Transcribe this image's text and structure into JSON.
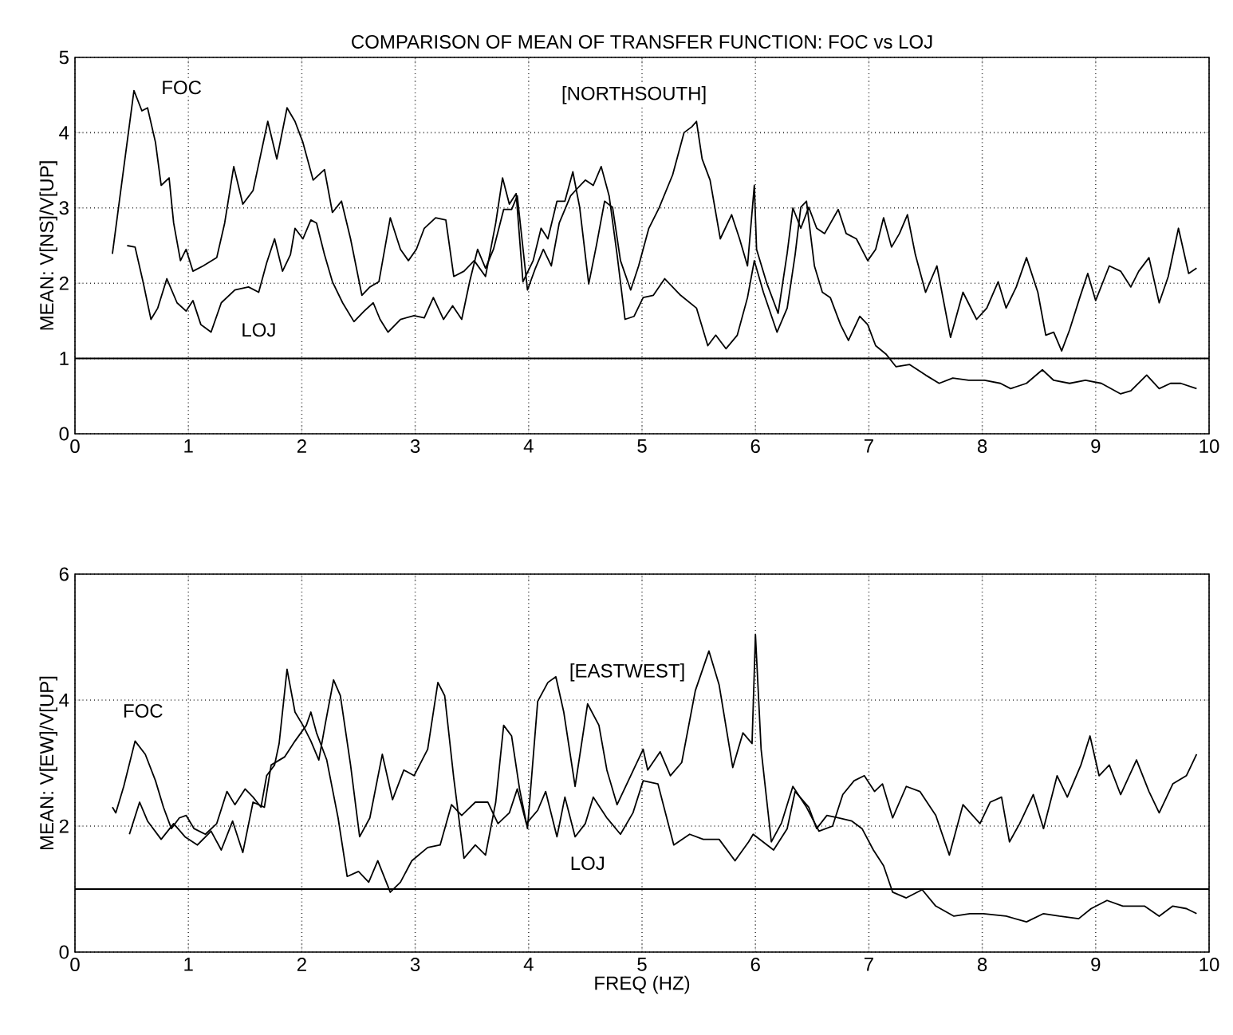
{
  "chart_data": [
    {
      "type": "line",
      "title": "COMPARISON OF MEAN OF TRANSFER FUNCTION: FOC vs LOJ",
      "ylabel": "MEAN: V[NS]/V[UP]",
      "xlim": [
        0,
        10
      ],
      "xticks": [
        0,
        1,
        2,
        3,
        4,
        5,
        6,
        7,
        8,
        9,
        10
      ],
      "ylim": [
        0,
        5
      ],
      "yticks": [
        0,
        1,
        2,
        3,
        4,
        5
      ],
      "grid": true,
      "annotations": [
        "[NORTHSOUTH]"
      ],
      "ref_lines": [
        {
          "axis": "y",
          "value": 1,
          "color": "#000000"
        }
      ],
      "series": [
        {
          "name": "FOC",
          "color": "#000000",
          "x": [
            0.33,
            0.52,
            0.59,
            0.64,
            0.71,
            0.76,
            0.83,
            0.87,
            0.93,
            0.98,
            1.04,
            1.13,
            1.25,
            1.32,
            1.4,
            1.48,
            1.57,
            1.7,
            1.78,
            1.87,
            1.94,
            2.01,
            2.1,
            2.2,
            2.27,
            2.35,
            2.43,
            2.53,
            2.6,
            2.68,
            2.78,
            2.87,
            2.94,
            3.01,
            3.08,
            3.18,
            3.27,
            3.34,
            3.43,
            3.52,
            3.62,
            3.71,
            3.77,
            3.83,
            3.89,
            3.95,
            4.04,
            4.11,
            4.17,
            4.25,
            4.32,
            4.39,
            4.45,
            4.53,
            4.6,
            4.67,
            4.74,
            4.81,
            4.9,
            4.97,
            5.06,
            5.15,
            5.27,
            5.37,
            5.44,
            5.48,
            5.53,
            5.6,
            5.69,
            5.79,
            5.86,
            5.93,
            5.99,
            6.01,
            6.1,
            6.2,
            6.28,
            6.33,
            6.4,
            6.47,
            6.54,
            6.61,
            6.73,
            6.8,
            6.89,
            6.99,
            7.06,
            7.13,
            7.2,
            7.27,
            7.34,
            7.41,
            7.5,
            7.6,
            7.72,
            7.83,
            7.95,
            8.04,
            8.14,
            8.21,
            8.3,
            8.39,
            8.49,
            8.56,
            8.63,
            8.7,
            8.77,
            8.86,
            8.93,
            9.0,
            9.12,
            9.22,
            9.31,
            9.38,
            9.47,
            9.56,
            9.64,
            9.73,
            9.82,
            9.89
          ],
          "values": [
            2.39,
            4.56,
            4.29,
            4.33,
            3.87,
            3.3,
            3.4,
            2.8,
            2.3,
            2.45,
            2.16,
            2.23,
            2.34,
            2.8,
            3.55,
            3.05,
            3.23,
            4.15,
            3.65,
            4.33,
            4.15,
            3.87,
            3.37,
            3.51,
            2.94,
            3.09,
            2.59,
            1.84,
            1.95,
            2.02,
            2.87,
            2.45,
            2.3,
            2.45,
            2.73,
            2.87,
            2.84,
            2.09,
            2.16,
            2.3,
            2.09,
            2.8,
            3.4,
            3.05,
            3.19,
            2.02,
            2.3,
            2.73,
            2.59,
            3.09,
            3.09,
            3.48,
            3.01,
            1.99,
            2.52,
            3.09,
            3.01,
            2.3,
            1.91,
            2.23,
            2.73,
            3.0,
            3.44,
            4.0,
            4.08,
            4.15,
            3.65,
            3.37,
            2.59,
            2.91,
            2.59,
            2.23,
            3.3,
            2.45,
            2.0,
            1.6,
            2.4,
            3.0,
            2.73,
            3.01,
            2.73,
            2.66,
            2.98,
            2.66,
            2.59,
            2.3,
            2.45,
            2.87,
            2.48,
            2.66,
            2.91,
            2.38,
            1.88,
            2.23,
            1.28,
            1.88,
            1.52,
            1.67,
            2.02,
            1.67,
            1.95,
            2.34,
            1.88,
            1.31,
            1.35,
            1.1,
            1.38,
            1.81,
            2.13,
            1.77,
            2.23,
            2.16,
            1.95,
            2.16,
            2.34,
            1.74,
            2.09,
            2.73,
            2.13,
            2.2
          ]
        },
        {
          "name": "LOJ",
          "color": "#000000",
          "x": [
            0.46,
            0.53,
            0.6,
            0.67,
            0.73,
            0.81,
            0.9,
            0.98,
            1.04,
            1.11,
            1.2,
            1.29,
            1.41,
            1.53,
            1.62,
            1.69,
            1.76,
            1.83,
            1.9,
            1.94,
            2.01,
            2.08,
            2.13,
            2.2,
            2.27,
            2.36,
            2.46,
            2.55,
            2.63,
            2.69,
            2.76,
            2.87,
            2.99,
            3.08,
            3.16,
            3.25,
            3.33,
            3.41,
            3.48,
            3.55,
            3.62,
            3.69,
            3.78,
            3.85,
            3.9,
            3.99,
            4.06,
            4.13,
            4.2,
            4.27,
            4.37,
            4.43,
            4.5,
            4.57,
            4.64,
            4.71,
            4.78,
            4.85,
            4.93,
            5.01,
            5.1,
            5.2,
            5.34,
            5.48,
            5.58,
            5.65,
            5.74,
            5.84,
            5.93,
            5.99,
            6.07,
            6.19,
            6.28,
            6.35,
            6.4,
            6.45,
            6.52,
            6.59,
            6.66,
            6.75,
            6.82,
            6.92,
            6.99,
            7.06,
            7.15,
            7.24,
            7.36,
            7.5,
            7.62,
            7.74,
            7.88,
            8.02,
            8.16,
            8.25,
            8.39,
            8.53,
            8.63,
            8.77,
            8.91,
            9.05,
            9.22,
            9.31,
            9.45,
            9.56,
            9.66,
            9.75,
            9.89
          ],
          "values": [
            2.5,
            2.48,
            2.02,
            1.52,
            1.67,
            2.06,
            1.74,
            1.63,
            1.77,
            1.45,
            1.35,
            1.74,
            1.91,
            1.95,
            1.88,
            2.27,
            2.59,
            2.16,
            2.38,
            2.73,
            2.59,
            2.84,
            2.8,
            2.38,
            2.02,
            1.74,
            1.49,
            1.63,
            1.74,
            1.52,
            1.35,
            1.52,
            1.57,
            1.54,
            1.81,
            1.52,
            1.7,
            1.52,
            2.02,
            2.45,
            2.2,
            2.45,
            2.98,
            2.98,
            3.16,
            1.91,
            2.2,
            2.45,
            2.23,
            2.8,
            3.16,
            3.26,
            3.37,
            3.3,
            3.55,
            3.16,
            2.38,
            1.52,
            1.56,
            1.81,
            1.84,
            2.06,
            1.84,
            1.67,
            1.17,
            1.31,
            1.13,
            1.31,
            1.81,
            2.3,
            1.88,
            1.35,
            1.67,
            2.38,
            3.01,
            3.09,
            2.23,
            1.88,
            1.81,
            1.45,
            1.24,
            1.56,
            1.45,
            1.17,
            1.06,
            0.89,
            0.92,
            0.78,
            0.67,
            0.74,
            0.71,
            0.71,
            0.67,
            0.6,
            0.67,
            0.85,
            0.71,
            0.67,
            0.71,
            0.67,
            0.53,
            0.57,
            0.78,
            0.6,
            0.67,
            0.67,
            0.6
          ]
        }
      ]
    },
    {
      "type": "line",
      "xlabel": "FREQ (HZ)",
      "ylabel": "MEAN: V[EW]/V[UP]",
      "xlim": [
        0,
        10
      ],
      "xticks": [
        0,
        1,
        2,
        3,
        4,
        5,
        6,
        7,
        8,
        9,
        10
      ],
      "ylim": [
        0,
        6
      ],
      "yticks": [
        0,
        2,
        4,
        6
      ],
      "grid": true,
      "annotations": [
        "[EASTWEST]"
      ],
      "ref_lines": [
        {
          "axis": "y",
          "value": 1,
          "color": "#000000"
        }
      ],
      "series": [
        {
          "name": "FOC",
          "color": "#000000",
          "x": [
            0.33,
            0.36,
            0.43,
            0.53,
            0.62,
            0.71,
            0.78,
            0.85,
            0.92,
            0.98,
            1.05,
            1.15,
            1.25,
            1.34,
            1.41,
            1.5,
            1.57,
            1.64,
            1.69,
            1.76,
            1.8,
            1.87,
            1.94,
            2.01,
            2.08,
            2.15,
            2.21,
            2.28,
            2.34,
            2.43,
            2.51,
            2.6,
            2.71,
            2.8,
            2.9,
            2.99,
            3.11,
            3.2,
            3.26,
            3.34,
            3.43,
            3.53,
            3.62,
            3.71,
            3.78,
            3.85,
            3.92,
            3.99,
            4.08,
            4.17,
            4.24,
            4.31,
            4.41,
            4.52,
            4.62,
            4.69,
            4.78,
            4.9,
            5.01,
            5.05,
            5.16,
            5.25,
            5.35,
            5.47,
            5.59,
            5.68,
            5.8,
            5.89,
            5.97,
            6.0,
            6.05,
            6.14,
            6.23,
            6.33,
            6.45,
            6.56,
            6.68,
            6.77,
            6.87,
            6.96,
            7.05,
            7.12,
            7.21,
            7.33,
            7.45,
            7.59,
            7.71,
            7.83,
            7.98,
            8.07,
            8.17,
            8.24,
            8.33,
            8.45,
            8.54,
            8.66,
            8.75,
            8.87,
            8.95,
            9.03,
            9.12,
            9.22,
            9.36,
            9.47,
            9.56,
            9.68,
            9.8,
            9.89
          ],
          "values": [
            2.3,
            2.21,
            2.63,
            3.35,
            3.14,
            2.72,
            2.3,
            1.96,
            2.13,
            2.17,
            1.96,
            1.87,
            2.04,
            2.55,
            2.34,
            2.59,
            2.46,
            2.3,
            2.8,
            2.97,
            3.31,
            4.49,
            3.81,
            3.6,
            3.35,
            3.05,
            3.65,
            4.32,
            4.07,
            2.97,
            1.83,
            2.13,
            3.14,
            2.42,
            2.89,
            2.8,
            3.22,
            4.28,
            4.07,
            2.76,
            1.49,
            1.7,
            1.54,
            2.38,
            3.6,
            3.43,
            2.59,
            1.96,
            3.98,
            4.28,
            4.37,
            3.81,
            2.63,
            3.94,
            3.6,
            2.89,
            2.34,
            2.8,
            3.22,
            2.89,
            3.18,
            2.8,
            3.01,
            4.15,
            4.78,
            4.24,
            2.93,
            3.48,
            3.31,
            5.04,
            3.22,
            1.75,
            2.05,
            2.63,
            2.3,
            1.92,
            2.0,
            2.5,
            2.72,
            2.8,
            2.55,
            2.67,
            2.13,
            2.63,
            2.55,
            2.17,
            1.54,
            2.34,
            2.04,
            2.38,
            2.46,
            1.75,
            2.04,
            2.5,
            1.96,
            2.8,
            2.46,
            2.97,
            3.43,
            2.8,
            2.97,
            2.5,
            3.05,
            2.55,
            2.21,
            2.67,
            2.8,
            3.14
          ]
        },
        {
          "name": "LOJ",
          "color": "#000000",
          "x": [
            0.48,
            0.57,
            0.64,
            0.76,
            0.87,
            0.97,
            1.08,
            1.2,
            1.29,
            1.39,
            1.48,
            1.57,
            1.67,
            1.73,
            1.85,
            1.94,
            2.04,
            2.08,
            2.13,
            2.22,
            2.32,
            2.4,
            2.5,
            2.59,
            2.67,
            2.78,
            2.87,
            2.97,
            3.11,
            3.22,
            3.32,
            3.41,
            3.53,
            3.64,
            3.73,
            3.83,
            3.9,
            3.98,
            4.08,
            4.15,
            4.25,
            4.32,
            4.41,
            4.5,
            4.57,
            4.69,
            4.81,
            4.92,
            5.01,
            5.14,
            5.28,
            5.42,
            5.54,
            5.68,
            5.82,
            5.94,
            5.98,
            6.16,
            6.28,
            6.35,
            6.47,
            6.54,
            6.63,
            6.73,
            6.85,
            6.94,
            7.04,
            7.13,
            7.21,
            7.33,
            7.47,
            7.59,
            7.75,
            7.89,
            8.01,
            8.21,
            8.39,
            8.54,
            8.68,
            8.85,
            8.96,
            9.1,
            9.24,
            9.43,
            9.56,
            9.68,
            9.8,
            9.89
          ],
          "values": [
            1.87,
            2.38,
            2.08,
            1.79,
            2.04,
            1.83,
            1.7,
            1.92,
            1.62,
            2.08,
            1.58,
            2.38,
            2.3,
            2.97,
            3.1,
            3.35,
            3.6,
            3.81,
            3.48,
            3.05,
            2.13,
            1.2,
            1.28,
            1.11,
            1.45,
            0.95,
            1.11,
            1.45,
            1.66,
            1.7,
            2.34,
            2.17,
            2.38,
            2.38,
            2.04,
            2.21,
            2.59,
            2.04,
            2.25,
            2.55,
            1.83,
            2.46,
            1.83,
            2.04,
            2.46,
            2.13,
            1.87,
            2.21,
            2.72,
            2.67,
            1.7,
            1.87,
            1.79,
            1.79,
            1.45,
            1.75,
            1.87,
            1.62,
            1.96,
            2.55,
            2.3,
            1.96,
            2.17,
            2.13,
            2.08,
            1.96,
            1.62,
            1.37,
            0.95,
            0.86,
            0.99,
            0.73,
            0.57,
            0.61,
            0.61,
            0.57,
            0.48,
            0.61,
            0.57,
            0.53,
            0.69,
            0.82,
            0.73,
            0.73,
            0.57,
            0.73,
            0.69,
            0.61
          ]
        }
      ]
    }
  ]
}
